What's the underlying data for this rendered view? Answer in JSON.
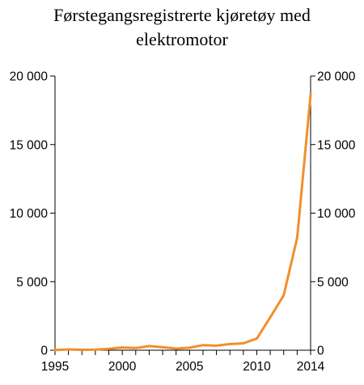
{
  "chart_data": {
    "type": "line",
    "title_lines": [
      "Førstegangsregistrerte kjøretøy med",
      "elektromotor"
    ],
    "x": [
      1995,
      1996,
      1997,
      1998,
      1999,
      2000,
      2001,
      2002,
      2003,
      2004,
      2005,
      2006,
      2007,
      2008,
      2009,
      2010,
      2011,
      2012,
      2013,
      2014
    ],
    "series": [
      {
        "values": [
          20,
          60,
          30,
          50,
          100,
          200,
          160,
          300,
          220,
          120,
          180,
          370,
          330,
          450,
          500,
          850,
          2400,
          4000,
          8200,
          18650
        ],
        "color": "#f28e2b"
      }
    ],
    "xlim": [
      1995,
      2014
    ],
    "ylim": [
      0,
      20000
    ],
    "x_ticks": [
      1995,
      2000,
      2005,
      2010,
      2014
    ],
    "y_ticks": [
      0,
      5000,
      10000,
      15000,
      20000
    ],
    "x_tick_labels": [
      "1995",
      "2000",
      "2005",
      "2010",
      "2014"
    ],
    "y_tick_labels": [
      "0",
      "5 000",
      "10 000",
      "15 000",
      "20 000"
    ],
    "y_axis_both_sides": true,
    "grid": false,
    "legend": "none"
  }
}
